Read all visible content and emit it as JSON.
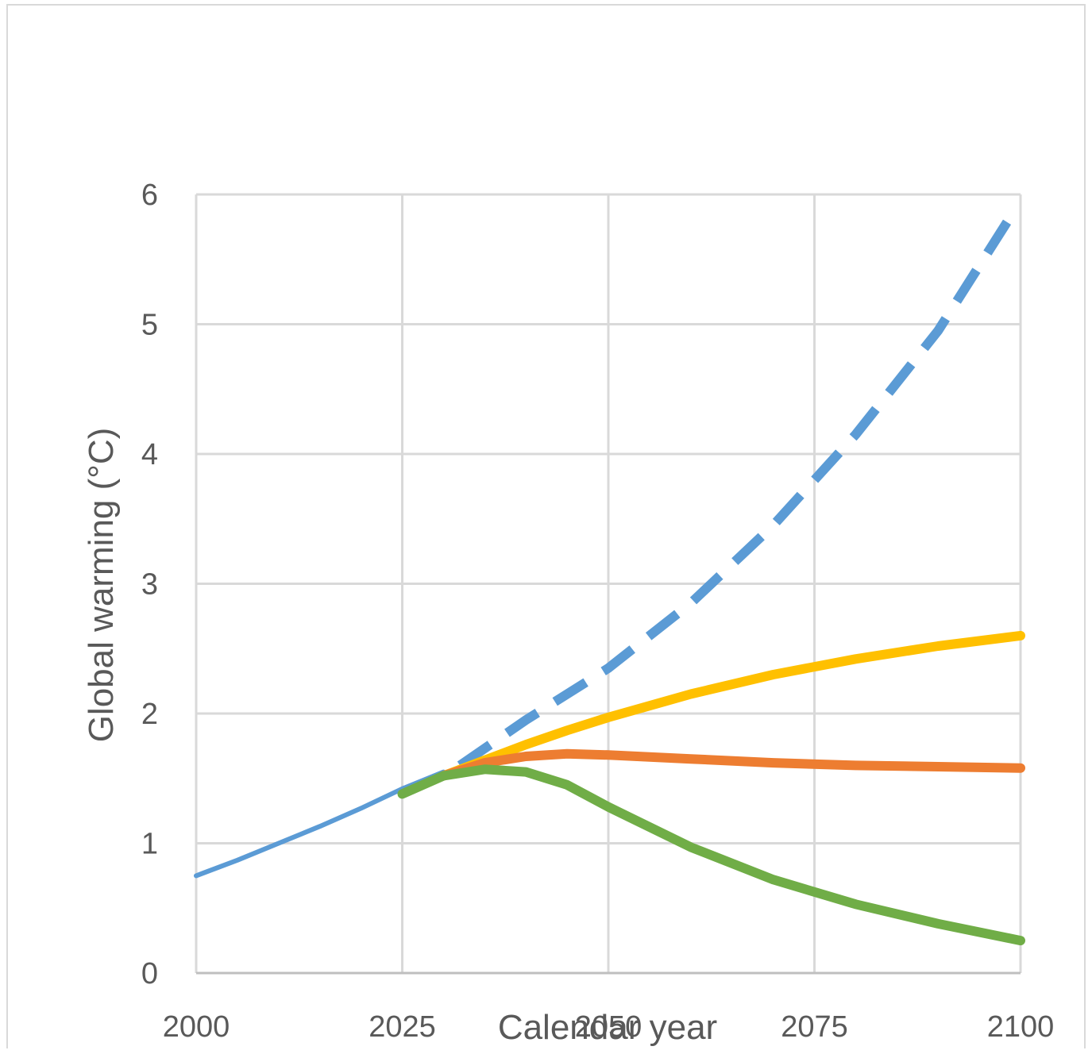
{
  "chart_data": {
    "type": "line",
    "title": "",
    "xlabel": "Calendar year",
    "ylabel": "Global warming (°C)",
    "xlim": [
      2000,
      2100
    ],
    "ylim": [
      0,
      6
    ],
    "x_ticks": [
      "2000",
      "2025",
      "2050",
      "2075",
      "2100"
    ],
    "y_ticks": [
      "0",
      "1",
      "2",
      "3",
      "4",
      "5",
      "6"
    ],
    "grid": true,
    "legend": "none",
    "series": [
      {
        "color": "#5b9bd5",
        "style": "solid",
        "width": 6,
        "x": [
          2000,
          2005,
          2010,
          2015,
          2020,
          2025,
          2030
        ],
        "y": [
          0.75,
          0.87,
          1.0,
          1.13,
          1.27,
          1.42,
          1.55
        ]
      },
      {
        "color": "#5b9bd5",
        "style": "dashed",
        "width": 12,
        "x": [
          2032,
          2040,
          2050,
          2060,
          2070,
          2080,
          2090,
          2099
        ],
        "y": [
          1.6,
          1.95,
          2.35,
          2.85,
          3.45,
          4.15,
          4.95,
          5.85
        ]
      },
      {
        "color": "#ffc000",
        "style": "solid",
        "width": 12,
        "x": [
          2030,
          2035,
          2040,
          2045,
          2050,
          2060,
          2070,
          2080,
          2090,
          2100
        ],
        "y": [
          1.52,
          1.64,
          1.76,
          1.87,
          1.97,
          2.15,
          2.3,
          2.42,
          2.52,
          2.6
        ]
      },
      {
        "color": "#ed7d31",
        "style": "solid",
        "width": 12,
        "x": [
          2030,
          2035,
          2040,
          2045,
          2050,
          2060,
          2070,
          2080,
          2090,
          2100
        ],
        "y": [
          1.52,
          1.62,
          1.67,
          1.69,
          1.68,
          1.65,
          1.62,
          1.6,
          1.59,
          1.58
        ]
      },
      {
        "color": "#70ad47",
        "style": "solid",
        "width": 12,
        "x": [
          2025,
          2030,
          2035,
          2040,
          2045,
          2050,
          2060,
          2070,
          2080,
          2090,
          2100
        ],
        "y": [
          1.38,
          1.52,
          1.57,
          1.55,
          1.45,
          1.28,
          0.97,
          0.72,
          0.53,
          0.38,
          0.25
        ]
      }
    ]
  }
}
